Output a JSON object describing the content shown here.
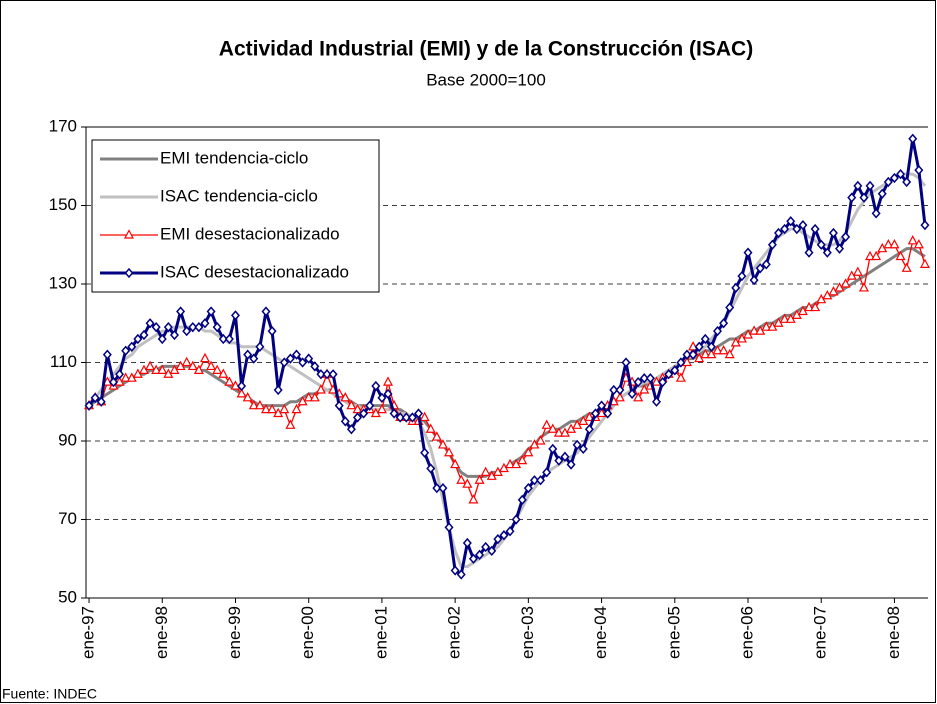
{
  "chart_data": {
    "type": "line",
    "title": "Actividad Industrial (EMI) y de la Construcción (ISAC)",
    "subtitle": "Base 2000=100",
    "note": "Fuente: INDEC",
    "legend": "upper left",
    "grid": true,
    "ylim": [
      50,
      170
    ],
    "yticks": [
      50,
      70,
      90,
      110,
      130,
      150,
      170
    ],
    "categories": [
      "ene-97",
      null,
      null,
      null,
      null,
      null,
      null,
      null,
      null,
      null,
      null,
      null,
      "ene-98",
      null,
      null,
      null,
      null,
      null,
      null,
      null,
      null,
      null,
      null,
      null,
      "ene-99",
      null,
      null,
      null,
      null,
      null,
      null,
      null,
      null,
      null,
      null,
      null,
      "ene-00",
      null,
      null,
      null,
      null,
      null,
      null,
      null,
      null,
      null,
      null,
      null,
      "ene-01",
      null,
      null,
      null,
      null,
      null,
      null,
      null,
      null,
      null,
      null,
      null,
      "ene-02",
      null,
      null,
      null,
      null,
      null,
      null,
      null,
      null,
      null,
      null,
      null,
      "ene-03",
      null,
      null,
      null,
      null,
      null,
      null,
      null,
      null,
      null,
      null,
      null,
      "ene-04",
      null,
      null,
      null,
      null,
      null,
      null,
      null,
      null,
      null,
      null,
      null,
      "ene-05",
      null,
      null,
      null,
      null,
      null,
      null,
      null,
      null,
      null,
      null,
      null,
      "ene-06",
      null,
      null,
      null,
      null,
      null,
      null,
      null,
      null,
      null,
      null,
      null,
      "ene-07",
      null,
      null,
      null,
      null,
      null,
      null,
      null,
      null,
      null,
      null,
      null,
      "ene-08",
      null,
      null,
      null,
      null,
      null
    ],
    "series": [
      {
        "name": "EMI tendencia-ciclo",
        "color": "#808080",
        "marker": "none",
        "values": [
          99,
          100,
          101,
          102,
          103,
          104,
          105,
          106,
          107,
          107,
          108,
          108,
          109,
          109,
          109,
          109,
          109,
          109,
          108,
          108,
          107,
          106,
          105,
          104,
          103,
          102,
          101,
          100,
          99,
          99,
          99,
          99,
          99,
          100,
          100,
          101,
          102,
          102,
          103,
          103,
          103,
          102,
          101,
          100,
          99,
          99,
          99,
          99,
          99,
          99,
          98,
          98,
          97,
          96,
          96,
          95,
          93,
          91,
          89,
          87,
          84,
          82,
          81,
          81,
          81,
          81,
          82,
          82,
          83,
          84,
          85,
          86,
          88,
          89,
          91,
          92,
          93,
          93,
          94,
          95,
          95,
          96,
          97,
          97,
          98,
          99,
          100,
          101,
          102,
          103,
          104,
          104,
          105,
          106,
          107,
          108,
          109,
          110,
          111,
          111,
          112,
          113,
          113,
          114,
          115,
          116,
          116,
          117,
          118,
          118,
          119,
          120,
          120,
          121,
          122,
          122,
          123,
          124,
          124,
          125,
          126,
          127,
          127,
          128,
          129,
          130,
          131,
          132,
          133,
          134,
          135,
          136,
          137,
          138,
          139,
          139,
          138,
          137
        ]
      },
      {
        "name": "ISAC tendencia-ciclo",
        "color": "#c0c0c0",
        "marker": "none",
        "values": [
          99,
          101,
          103,
          105,
          107,
          109,
          111,
          112,
          114,
          115,
          116,
          117,
          118,
          118,
          119,
          119,
          119,
          119,
          119,
          118,
          118,
          117,
          116,
          115,
          115,
          114,
          114,
          114,
          114,
          113,
          112,
          111,
          110,
          109,
          108,
          107,
          106,
          105,
          104,
          103,
          102,
          101,
          100,
          99,
          99,
          98,
          98,
          98,
          98,
          98,
          98,
          97,
          97,
          96,
          95,
          92,
          88,
          82,
          75,
          68,
          62,
          58,
          58,
          59,
          60,
          61,
          62,
          63,
          65,
          67,
          70,
          73,
          76,
          78,
          80,
          82,
          83,
          84,
          85,
          86,
          87,
          89,
          91,
          93,
          95,
          97,
          99,
          101,
          102,
          103,
          104,
          105,
          105,
          106,
          107,
          108,
          109,
          110,
          111,
          112,
          113,
          114,
          116,
          118,
          120,
          123,
          126,
          129,
          132,
          134,
          136,
          138,
          140,
          142,
          143,
          144,
          144,
          143,
          142,
          141,
          140,
          140,
          140,
          141,
          143,
          146,
          149,
          151,
          153,
          154,
          155,
          156,
          157,
          158,
          158,
          158,
          157,
          155
        ]
      },
      {
        "name": "EMI desestacionalizado",
        "color": "#ff0000",
        "marker": "triangle",
        "values": [
          99,
          101,
          100,
          105,
          104,
          105,
          106,
          106,
          107,
          108,
          109,
          108,
          108,
          107,
          108,
          109,
          110,
          109,
          108,
          111,
          109,
          108,
          107,
          105,
          104,
          102,
          101,
          99,
          99,
          98,
          98,
          97,
          98,
          94,
          98,
          100,
          101,
          101,
          103,
          107,
          103,
          102,
          101,
          99,
          98,
          98,
          98,
          97,
          98,
          105,
          99,
          96,
          96,
          95,
          95,
          96,
          93,
          91,
          89,
          87,
          84,
          80,
          79,
          75,
          80,
          82,
          81,
          82,
          83,
          84,
          84,
          85,
          87,
          89,
          90,
          94,
          93,
          92,
          92,
          93,
          94,
          95,
          96,
          96,
          97,
          99,
          100,
          101,
          106,
          105,
          101,
          103,
          104,
          105,
          106,
          107,
          108,
          106,
          110,
          114,
          111,
          112,
          112,
          113,
          113,
          112,
          115,
          116,
          117,
          118,
          118,
          119,
          119,
          120,
          121,
          121,
          122,
          123,
          124,
          124,
          126,
          127,
          128,
          129,
          130,
          132,
          133,
          129,
          137,
          137,
          139,
          140,
          140,
          137,
          134,
          141,
          140,
          135
        ]
      },
      {
        "name": "ISAC desestacionalizado",
        "color": "#000080",
        "marker": "diamond",
        "values": [
          99,
          101,
          100,
          112,
          105,
          107,
          113,
          114,
          116,
          117,
          120,
          119,
          116,
          119,
          117,
          123,
          118,
          119,
          119,
          120,
          123,
          119,
          116,
          116,
          122,
          104,
          112,
          111,
          114,
          123,
          118,
          103,
          110,
          111,
          112,
          110,
          111,
          109,
          107,
          107,
          107,
          99,
          95,
          93,
          96,
          97,
          99,
          104,
          101,
          102,
          97,
          96,
          96,
          96,
          97,
          87,
          83,
          78,
          78,
          68,
          57,
          56,
          64,
          60,
          61,
          63,
          62,
          65,
          66,
          67,
          70,
          75,
          78,
          80,
          80,
          82,
          88,
          85,
          86,
          84,
          89,
          88,
          93,
          97,
          99,
          97,
          103,
          103,
          110,
          102,
          105,
          106,
          106,
          100,
          105,
          107,
          108,
          110,
          112,
          112,
          114,
          116,
          114,
          118,
          120,
          124,
          129,
          132,
          138,
          131,
          134,
          135,
          140,
          143,
          144,
          146,
          144,
          145,
          138,
          144,
          140,
          138,
          143,
          139,
          142,
          152,
          155,
          152,
          155,
          148,
          153,
          156,
          157,
          158,
          156,
          167,
          159,
          145
        ]
      }
    ]
  }
}
